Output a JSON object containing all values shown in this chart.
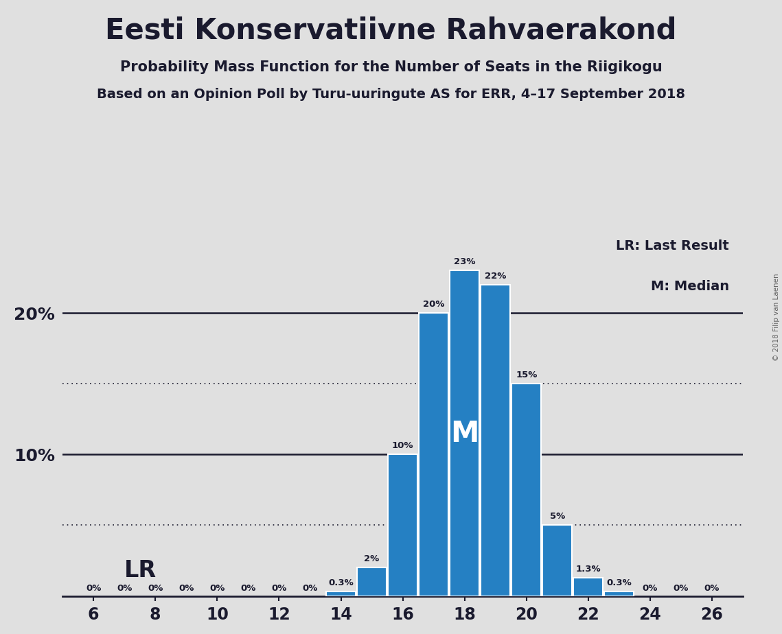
{
  "title": "Eesti Konservatiivne Rahvaerakond",
  "subtitle1": "Probability Mass Function for the Number of Seats in the Riigikogu",
  "subtitle2": "Based on an Opinion Poll by Turu-uuringute AS for ERR, 4–17 September 2018",
  "copyright": "© 2018 Filip van Laenen",
  "seats": [
    6,
    7,
    8,
    9,
    10,
    11,
    12,
    13,
    14,
    15,
    16,
    17,
    18,
    19,
    20,
    21,
    22,
    23,
    24,
    25,
    26
  ],
  "probabilities": [
    0.0,
    0.0,
    0.0,
    0.0,
    0.0,
    0.0,
    0.0,
    0.0,
    0.3,
    2.0,
    10.0,
    20.0,
    23.0,
    22.0,
    15.0,
    5.0,
    1.3,
    0.3,
    0.0,
    0.0,
    0.0
  ],
  "bar_color": "#2580C3",
  "background_color": "#E0E0E0",
  "text_color": "#1A1A2E",
  "median_seat": 18,
  "xlim_lo": 5,
  "xlim_hi": 27,
  "ylim_lo": 0,
  "ylim_hi": 26,
  "dotted_lines": [
    5.0,
    15.0
  ],
  "solid_lines": [
    10.0,
    20.0
  ],
  "legend_lr": "LR: Last Result",
  "legend_m": "M: Median",
  "lr_label": "LR",
  "m_label": "M"
}
